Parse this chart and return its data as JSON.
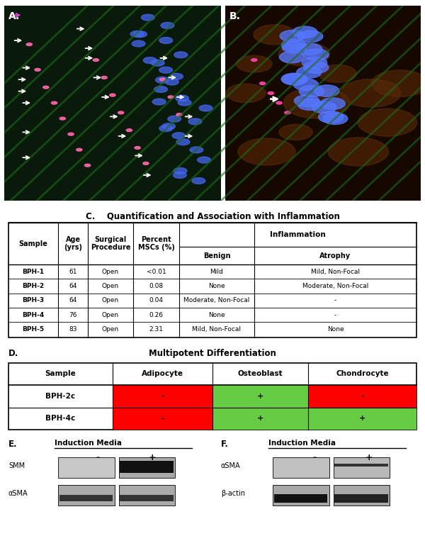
{
  "panel_C_title": "Quantification and Association with Inflammation",
  "panel_C_rows": [
    [
      "BPH-1",
      "61",
      "Open",
      "<0.01",
      "Mild",
      "Mild, Non-Focal"
    ],
    [
      "BPH-2",
      "64",
      "Open",
      "0.08",
      "None",
      "Moderate, Non-Focal"
    ],
    [
      "BPH-3",
      "64",
      "Open",
      "0.04",
      "Moderate, Non-Focal",
      "-"
    ],
    [
      "BPH-4",
      "76",
      "Open",
      "0.26",
      "None",
      "-"
    ],
    [
      "BPH-5",
      "83",
      "Open",
      "2.31",
      "Mild, Non-Focal",
      "None"
    ]
  ],
  "panel_D_title": "Multipotent Differentiation",
  "panel_D_headers": [
    "Sample",
    "Adipocyte",
    "Osteoblast",
    "Chondrocyte"
  ],
  "panel_D_rows": [
    [
      "BPH-2c",
      "-",
      "+",
      "-"
    ],
    [
      "BPH-4c",
      "-",
      "+",
      "+"
    ]
  ],
  "panel_D_colors": {
    "BPH-2c": [
      "#ff0000",
      "#66cc44",
      "#ff0000"
    ],
    "BPH-4c": [
      "#ff0000",
      "#66cc44",
      "#66cc44"
    ]
  },
  "panel_E_title": "Induction Media",
  "panel_E_rows": [
    "SMM",
    "αSMA"
  ],
  "panel_F_title": "Induction Media",
  "panel_F_rows": [
    "αSMA",
    "β-actin"
  ],
  "bg_color": "#ffffff"
}
